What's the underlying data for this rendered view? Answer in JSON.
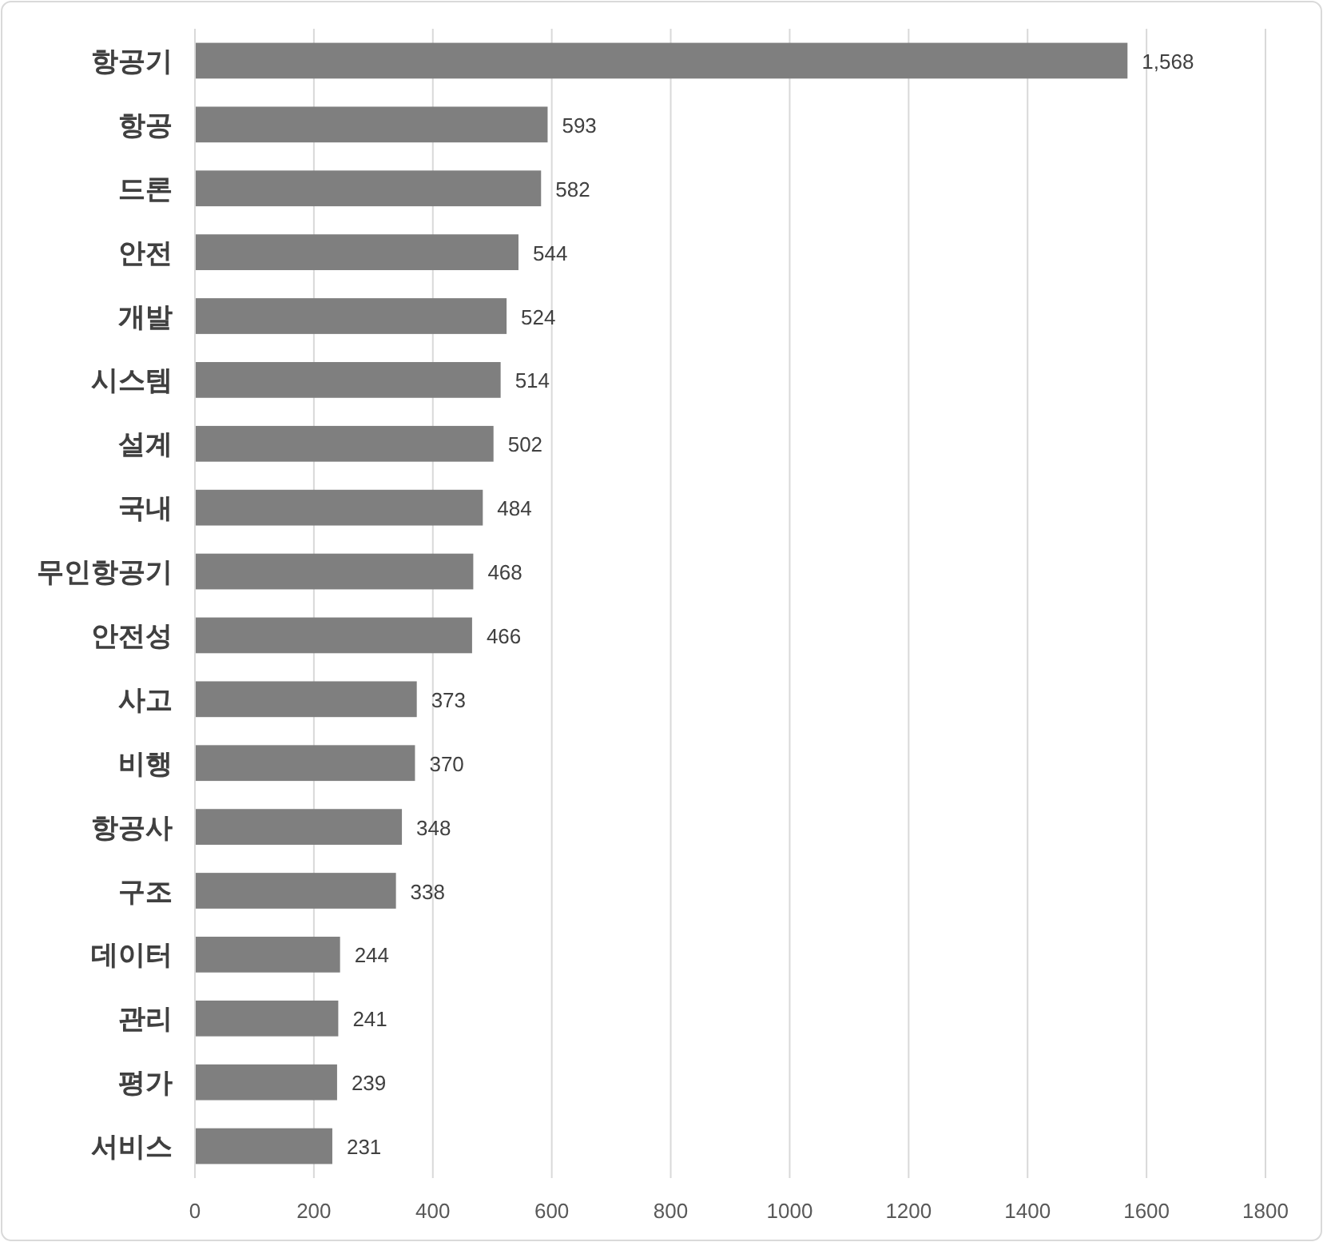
{
  "chart_data": {
    "type": "bar",
    "orientation": "horizontal",
    "categories": [
      "항공기",
      "항공",
      "드론",
      "안전",
      "개발",
      "시스템",
      "설계",
      "국내",
      "무인항공기",
      "안전성",
      "사고",
      "비행",
      "항공사",
      "구조",
      "데이터",
      "관리",
      "평가",
      "서비스"
    ],
    "values": [
      1568,
      593,
      582,
      544,
      524,
      514,
      502,
      484,
      468,
      466,
      373,
      370,
      348,
      338,
      244,
      241,
      239,
      231
    ],
    "value_labels": [
      "1,568",
      "593",
      "582",
      "544",
      "524",
      "514",
      "502",
      "484",
      "468",
      "466",
      "373",
      "370",
      "348",
      "338",
      "244",
      "241",
      "239",
      "231"
    ],
    "color": "#7f7f7f",
    "xlim": [
      0,
      1800
    ],
    "xticks": [
      0,
      200,
      400,
      600,
      800,
      1000,
      1200,
      1400,
      1600,
      1800
    ],
    "grid": "x"
  }
}
